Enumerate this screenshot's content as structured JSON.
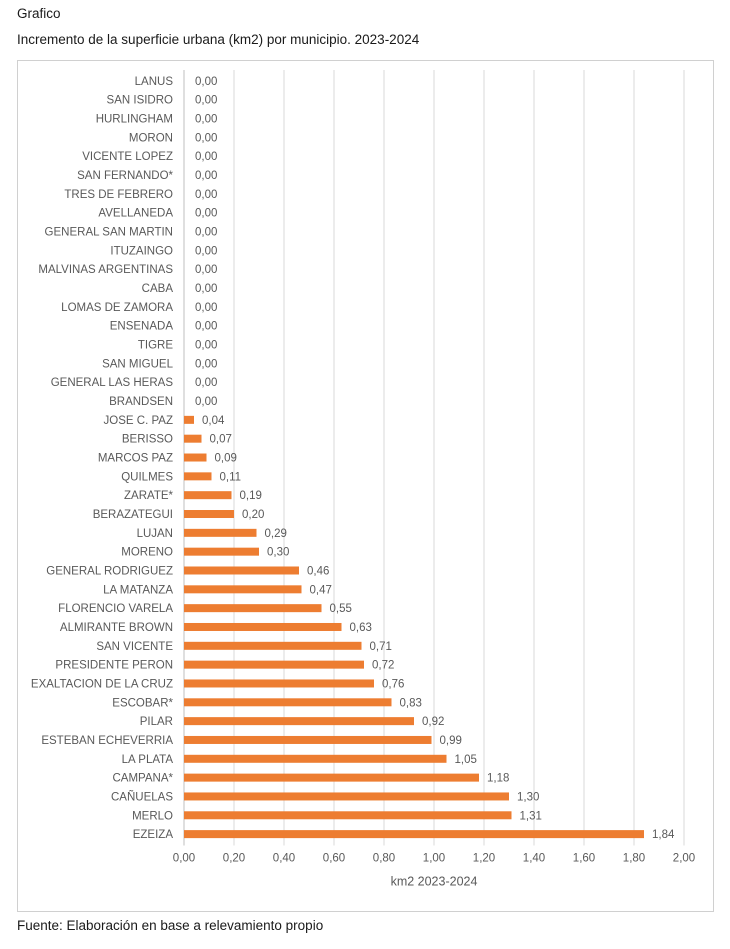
{
  "header": {
    "label": "Grafico",
    "title": "Incremento de la superficie urbana (km2) por municipio. 2023-2024"
  },
  "footer": {
    "source": "Fuente: Elaboración en base a relevamiento propio"
  },
  "colors": {
    "bar": "#ED7D31",
    "grid": "#D9D9D9",
    "text": "#595959"
  },
  "chart_data": {
    "type": "bar",
    "orientation": "horizontal",
    "categories": [
      "LANUS",
      "SAN ISIDRO",
      "HURLINGHAM",
      "MORON",
      "VICENTE LOPEZ",
      "SAN FERNANDO*",
      "TRES DE FEBRERO",
      "AVELLANEDA",
      "GENERAL SAN MARTIN",
      "ITUZAINGO",
      "MALVINAS ARGENTINAS",
      "CABA",
      "LOMAS DE ZAMORA",
      "ENSENADA",
      "TIGRE",
      "SAN MIGUEL",
      "GENERAL LAS HERAS",
      "BRANDSEN",
      "JOSE C. PAZ",
      "BERISSO",
      "MARCOS PAZ",
      "QUILMES",
      "ZARATE*",
      "BERAZATEGUI",
      "LUJAN",
      "MORENO",
      "GENERAL RODRIGUEZ",
      "LA MATANZA",
      "FLORENCIO VARELA",
      "ALMIRANTE BROWN",
      "SAN VICENTE",
      "PRESIDENTE PERON",
      "EXALTACION DE LA CRUZ",
      "ESCOBAR*",
      "PILAR",
      "ESTEBAN ECHEVERRIA",
      "LA PLATA",
      "CAMPANA*",
      "CAÑUELAS",
      "MERLO",
      "EZEIZA"
    ],
    "values": [
      0,
      0,
      0,
      0,
      0,
      0,
      0,
      0,
      0,
      0,
      0,
      0,
      0,
      0,
      0,
      0,
      0,
      0,
      0.04,
      0.07,
      0.09,
      0.11,
      0.19,
      0.2,
      0.29,
      0.3,
      0.46,
      0.47,
      0.55,
      0.63,
      0.71,
      0.72,
      0.76,
      0.83,
      0.92,
      0.99,
      1.05,
      1.18,
      1.3,
      1.31,
      1.84
    ],
    "value_labels": [
      "0,00",
      "0,00",
      "0,00",
      "0,00",
      "0,00",
      "0,00",
      "0,00",
      "0,00",
      "0,00",
      "0,00",
      "0,00",
      "0,00",
      "0,00",
      "0,00",
      "0,00",
      "0,00",
      "0,00",
      "0,00",
      "0,04",
      "0,07",
      "0,09",
      "0,11",
      "0,19",
      "0,20",
      "0,29",
      "0,30",
      "0,46",
      "0,47",
      "0,55",
      "0,63",
      "0,71",
      "0,72",
      "0,76",
      "0,83",
      "0,92",
      "0,99",
      "1,05",
      "1,18",
      "1,30",
      "1,31",
      "1,84"
    ],
    "xlim": [
      0,
      2
    ],
    "xticks": [
      0,
      0.2,
      0.4,
      0.6,
      0.8,
      1.0,
      1.2,
      1.4,
      1.6,
      1.8,
      2.0
    ],
    "xtick_labels": [
      "0,00",
      "0,20",
      "0,40",
      "0,60",
      "0,80",
      "1,00",
      "1,20",
      "1,40",
      "1,60",
      "1,80",
      "2,00"
    ],
    "xlabel": "km2 2023-2024",
    "grid": true,
    "legend": "none"
  }
}
